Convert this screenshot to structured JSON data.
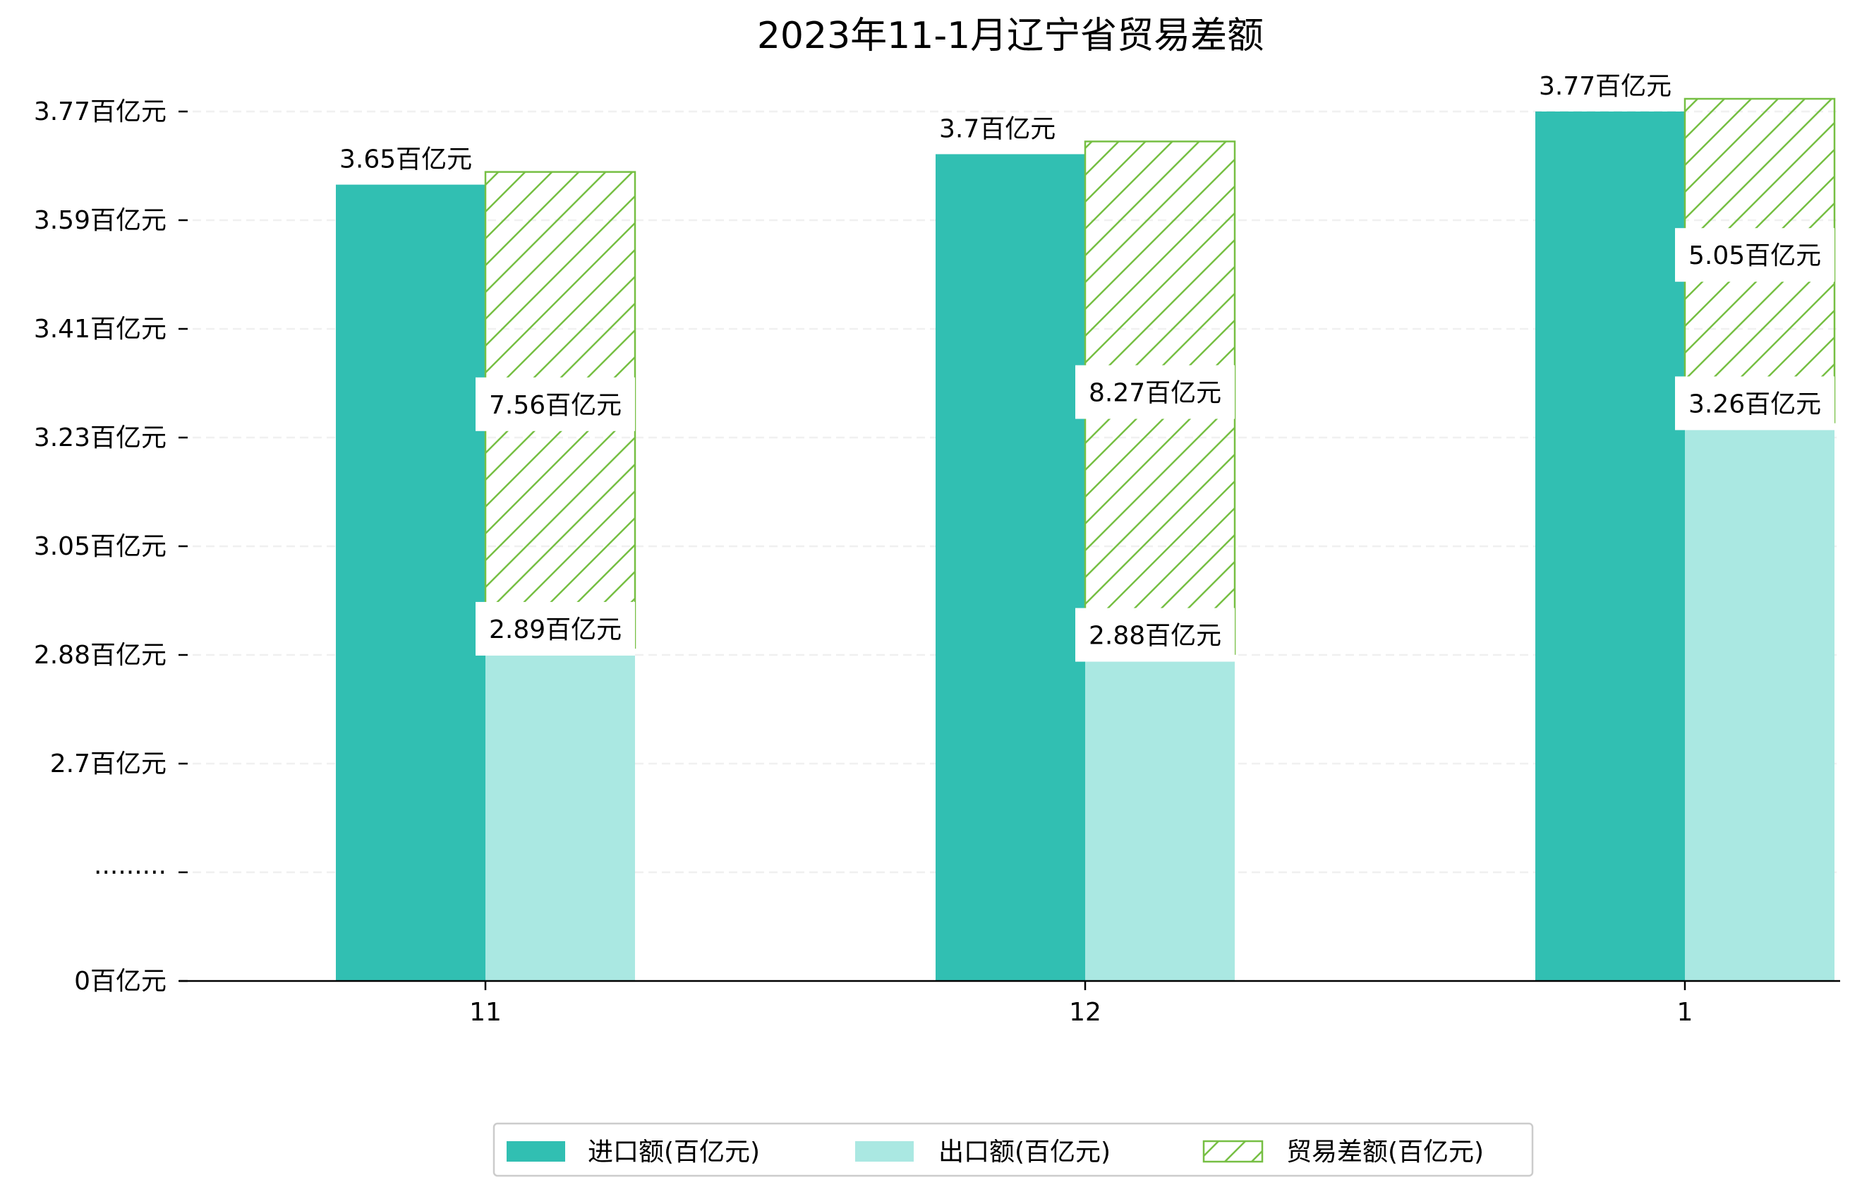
{
  "chart_data": {
    "type": "bar",
    "title": "2023年11-1月辽宁省贸易差额",
    "categories": [
      "11",
      "12",
      "1"
    ],
    "series": [
      {
        "name": "进口额(百亿元)",
        "values": [
          3.65,
          3.7,
          3.77
        ],
        "labels": [
          "3.65百亿元",
          "3.7百亿元",
          "3.77百亿元"
        ],
        "color": "#31bfb2"
      },
      {
        "name": "出口额(百亿元)",
        "values": [
          2.89,
          2.88,
          3.26
        ],
        "labels": [
          "2.89百亿元",
          "2.88百亿元",
          "3.26百亿元"
        ],
        "color": "#aae8e2"
      },
      {
        "name": "贸易差额(百亿元)",
        "values": [
          7.56,
          8.27,
          5.05
        ],
        "labels": [
          "7.56百亿元",
          "8.27百亿元",
          "5.05百亿元"
        ],
        "color": "#76bf43",
        "hatch": true
      }
    ],
    "y_axis": {
      "broken": true,
      "ticks": [
        {
          "label": "0百亿元",
          "value": 0
        },
        {
          "label": "·········",
          "value": null
        },
        {
          "label": "2.7百亿元",
          "value": 2.7
        },
        {
          "label": "2.88百亿元",
          "value": 2.88
        },
        {
          "label": "3.05百亿元",
          "value": 3.05
        },
        {
          "label": "3.23百亿元",
          "value": 3.23
        },
        {
          "label": "3.41百亿元",
          "value": 3.41
        },
        {
          "label": "3.59百亿元",
          "value": 3.59
        },
        {
          "label": "3.77百亿元",
          "value": 3.77
        }
      ]
    },
    "grid": true,
    "legend_position": "bottom-center"
  }
}
